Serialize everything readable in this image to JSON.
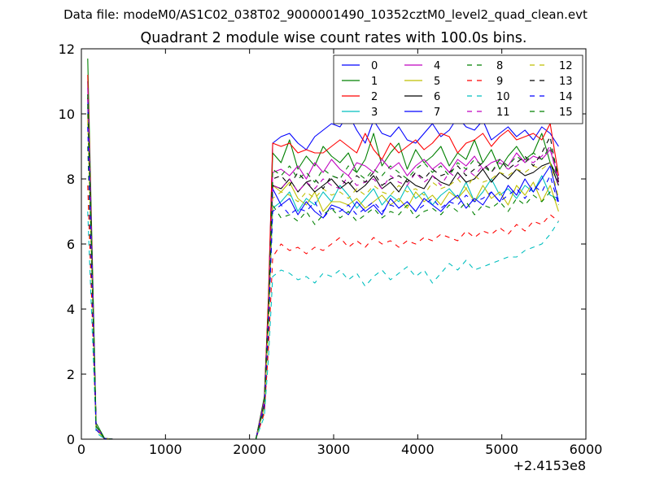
{
  "suptitle": "Data file: modeM0/AS1C02_038T02_9000001490_10352cztM0_level2_quad_clean.evt",
  "chart_data": {
    "type": "line",
    "title": "Quadrant 2 module wise count rates with 100.0s bins.",
    "xlabel": "",
    "ylabel": "",
    "x_offset_label": "+2.4153e8",
    "xlim": [
      0,
      6000
    ],
    "ylim": [
      0,
      12
    ],
    "x_ticks": [
      0,
      1000,
      2000,
      3000,
      4000,
      5000,
      6000
    ],
    "y_ticks": [
      0,
      2,
      4,
      6,
      8,
      10,
      12
    ],
    "grid": false,
    "legend": {
      "placement": "top-right",
      "columns": 4
    },
    "x": [
      75,
      175,
      275,
      375,
      475,
      575,
      675,
      775,
      875,
      975,
      1075,
      1175,
      1275,
      1375,
      1475,
      1575,
      1675,
      1775,
      1875,
      1975,
      2075,
      2175,
      2225,
      2275,
      2375,
      2475,
      2575,
      2675,
      2775,
      2875,
      2975,
      3075,
      3175,
      3275,
      3375,
      3475,
      3575,
      3675,
      3775,
      3875,
      3975,
      4075,
      4175,
      4275,
      4375,
      4475,
      4575,
      4675,
      4775,
      4875,
      4975,
      5075,
      5175,
      5275,
      5375,
      5475,
      5575,
      5675
    ],
    "series": [
      {
        "name": "0",
        "color": "#0000ff",
        "dash": "solid",
        "plateau": 9.4,
        "start": 11.0,
        "values": [
          11.0,
          0.4,
          0.02,
          0,
          0,
          0,
          0,
          0,
          0,
          0,
          0,
          0,
          0,
          0,
          0,
          0,
          0,
          0,
          0,
          0,
          0.0,
          1.2,
          4.2,
          9.1,
          9.3,
          9.4,
          9.1,
          8.9,
          9.3,
          9.5,
          9.7,
          9.6,
          10.0,
          9.5,
          9.1,
          9.8,
          9.4,
          9.3,
          9.6,
          9.2,
          9.1,
          9.4,
          9.7,
          9.3,
          9.5,
          9.9,
          9.6,
          9.5,
          9.8,
          9.2,
          9.4,
          9.6,
          9.3,
          9.5,
          9.2,
          9.6,
          9.4,
          9.0
        ]
      },
      {
        "name": "1",
        "color": "#008000",
        "dash": "solid",
        "plateau": 8.6,
        "start": 11.7,
        "values": [
          11.7,
          0.5,
          0.03,
          0,
          0,
          0,
          0,
          0,
          0,
          0,
          0,
          0,
          0,
          0,
          0,
          0,
          0,
          0,
          0,
          0,
          0.0,
          1.3,
          4.3,
          8.8,
          8.5,
          9.2,
          8.3,
          8.7,
          8.4,
          9.0,
          8.7,
          8.5,
          8.8,
          8.2,
          8.6,
          9.4,
          8.4,
          8.8,
          9.1,
          8.3,
          8.9,
          8.5,
          8.7,
          9.0,
          8.4,
          8.8,
          8.6,
          9.2,
          8.5,
          8.9,
          8.3,
          8.7,
          9.0,
          8.6,
          8.8,
          9.4,
          8.5,
          8.0
        ]
      },
      {
        "name": "2",
        "color": "#ff0000",
        "dash": "solid",
        "plateau": 9.0,
        "start": 11.2,
        "values": [
          11.2,
          0.4,
          0.02,
          0,
          0,
          0,
          0,
          0,
          0,
          0,
          0,
          0,
          0,
          0,
          0,
          0,
          0,
          0,
          0,
          0,
          0.0,
          1.2,
          4.4,
          9.1,
          9.0,
          9.1,
          8.8,
          8.9,
          8.8,
          8.8,
          9.0,
          9.2,
          9.0,
          8.8,
          9.4,
          8.9,
          8.6,
          9.1,
          8.8,
          9.0,
          9.2,
          8.9,
          9.1,
          9.4,
          9.3,
          8.8,
          9.1,
          9.2,
          9.4,
          9.0,
          9.3,
          9.5,
          9.2,
          9.3,
          9.4,
          9.2,
          9.7,
          8.1
        ]
      },
      {
        "name": "3",
        "color": "#00bfbf",
        "dash": "solid",
        "plateau": 7.4,
        "start": 10.2,
        "values": [
          10.2,
          0.3,
          0.02,
          0,
          0,
          0,
          0,
          0,
          0,
          0,
          0,
          0,
          0,
          0,
          0,
          0,
          0,
          0,
          0,
          0,
          0.0,
          1.0,
          3.6,
          7.1,
          7.3,
          7.6,
          7.0,
          7.4,
          7.2,
          7.6,
          7.3,
          7.8,
          7.5,
          7.1,
          7.4,
          7.7,
          7.2,
          7.5,
          7.3,
          7.8,
          7.4,
          7.6,
          7.2,
          7.5,
          7.7,
          7.4,
          7.9,
          7.3,
          7.6,
          8.0,
          7.5,
          7.7,
          7.4,
          7.8,
          7.6,
          8.1,
          7.5,
          7.4
        ]
      },
      {
        "name": "4",
        "color": "#bf00bf",
        "dash": "solid",
        "plateau": 8.4,
        "start": 10.8,
        "values": [
          10.8,
          0.4,
          0.02,
          0,
          0,
          0,
          0,
          0,
          0,
          0,
          0,
          0,
          0,
          0,
          0,
          0,
          0,
          0,
          0,
          0,
          0.0,
          1.2,
          4.0,
          8.2,
          8.3,
          8.1,
          8.4,
          8.0,
          8.5,
          8.2,
          8.6,
          8.3,
          8.1,
          8.5,
          8.4,
          8.2,
          8.6,
          8.3,
          8.5,
          8.1,
          8.4,
          8.6,
          8.3,
          8.5,
          8.2,
          8.6,
          8.4,
          8.7,
          8.3,
          8.5,
          8.6,
          8.4,
          8.8,
          8.5,
          8.7,
          8.6,
          8.9,
          8.0
        ]
      },
      {
        "name": "5",
        "color": "#bfbf00",
        "dash": "solid",
        "plateau": 7.4,
        "start": 10.0,
        "values": [
          10.0,
          0.3,
          0.02,
          0,
          0,
          0,
          0,
          0,
          0,
          0,
          0,
          0,
          0,
          0,
          0,
          0,
          0,
          0,
          0,
          0,
          0.0,
          1.0,
          3.5,
          7.8,
          7.6,
          7.9,
          7.4,
          7.2,
          7.6,
          7.0,
          7.3,
          7.3,
          7.2,
          7.4,
          7.1,
          7.3,
          7.5,
          7.2,
          7.4,
          7.1,
          7.6,
          7.3,
          7.5,
          7.2,
          7.6,
          7.4,
          7.7,
          7.3,
          7.8,
          7.4,
          7.6,
          7.2,
          7.8,
          7.5,
          7.9,
          7.3,
          7.8,
          7.0
        ]
      },
      {
        "name": "6",
        "color": "#000000",
        "dash": "solid",
        "plateau": 7.8,
        "start": 10.5,
        "values": [
          10.5,
          0.4,
          0.02,
          0,
          0,
          0,
          0,
          0,
          0,
          0,
          0,
          0,
          0,
          0,
          0,
          0,
          0,
          0,
          0,
          0,
          0.0,
          1.1,
          3.9,
          7.8,
          7.7,
          8.0,
          7.6,
          7.9,
          7.6,
          7.8,
          8.0,
          7.7,
          7.9,
          7.6,
          7.8,
          8.1,
          7.7,
          7.9,
          7.6,
          8.0,
          7.8,
          7.7,
          8.1,
          7.9,
          7.8,
          8.2,
          7.9,
          8.0,
          8.3,
          7.9,
          8.2,
          8.0,
          8.3,
          8.1,
          8.2,
          8.4,
          8.5,
          7.8
        ]
      },
      {
        "name": "7",
        "color": "#0000ff",
        "dash": "solid",
        "plateau": 7.2,
        "start": 10.6,
        "values": [
          10.6,
          0.4,
          0.02,
          0,
          0,
          0,
          0,
          0,
          0,
          0,
          0,
          0,
          0,
          0,
          0,
          0,
          0,
          0,
          0,
          0,
          0.0,
          1.1,
          3.8,
          7.7,
          7.2,
          7.4,
          6.9,
          7.3,
          7.0,
          6.8,
          7.2,
          7.1,
          6.9,
          7.3,
          7.0,
          7.2,
          6.9,
          7.4,
          7.1,
          7.3,
          7.0,
          7.4,
          7.2,
          7.0,
          7.3,
          7.5,
          7.1,
          7.4,
          7.2,
          7.6,
          7.3,
          7.8,
          7.5,
          8.0,
          7.6,
          8.0,
          8.4,
          7.3
        ]
      },
      {
        "name": "8",
        "color": "#008000",
        "dash": "dashed",
        "plateau": 6.9,
        "start": 9.0,
        "values": [
          9.0,
          0.3,
          0.02,
          0,
          0,
          0,
          0,
          0,
          0,
          0,
          0,
          0,
          0,
          0,
          0,
          0,
          0,
          0,
          0,
          0,
          0.0,
          0.9,
          3.3,
          7.2,
          6.8,
          6.9,
          6.7,
          7.0,
          6.6,
          6.9,
          7.1,
          6.8,
          7.0,
          6.7,
          6.9,
          7.1,
          6.8,
          7.0,
          6.9,
          7.2,
          6.8,
          7.0,
          7.1,
          6.9,
          7.2,
          7.0,
          7.3,
          6.9,
          7.2,
          7.1,
          7.3,
          7.0,
          7.4,
          7.2,
          7.5,
          7.3,
          7.6,
          7.2
        ]
      },
      {
        "name": "9",
        "color": "#ff0000",
        "dash": "dashed",
        "plateau": 6.0,
        "start": 7.8,
        "values": [
          7.8,
          0.3,
          0.01,
          0,
          0,
          0,
          0,
          0,
          0,
          0,
          0,
          0,
          0,
          0,
          0,
          0,
          0,
          0,
          0,
          0,
          0.0,
          0.8,
          2.8,
          5.6,
          6.0,
          5.8,
          5.9,
          5.7,
          5.9,
          5.8,
          6.0,
          6.2,
          5.9,
          6.1,
          5.9,
          6.2,
          6.0,
          6.1,
          5.9,
          6.1,
          6.0,
          6.2,
          6.1,
          6.3,
          6.2,
          6.1,
          6.4,
          6.2,
          6.4,
          6.3,
          6.5,
          6.3,
          6.6,
          6.4,
          6.7,
          6.6,
          6.9,
          6.7
        ]
      },
      {
        "name": "10",
        "color": "#00bfbf",
        "dash": "dashed",
        "plateau": 5.1,
        "start": 7.0,
        "values": [
          7.0,
          0.2,
          0.01,
          0,
          0,
          0,
          0,
          0,
          0,
          0,
          0,
          0,
          0,
          0,
          0,
          0,
          0,
          0,
          0,
          0,
          0.0,
          0.7,
          2.5,
          5.0,
          5.2,
          5.1,
          4.9,
          5.0,
          4.8,
          5.1,
          5.0,
          5.2,
          4.9,
          5.1,
          4.7,
          5.0,
          5.2,
          4.9,
          5.1,
          5.3,
          5.0,
          5.2,
          4.8,
          5.1,
          5.4,
          5.2,
          5.5,
          5.2,
          5.3,
          5.4,
          5.5,
          5.6,
          5.6,
          5.8,
          5.9,
          6.0,
          6.3,
          6.7
        ]
      },
      {
        "name": "11",
        "color": "#bf00bf",
        "dash": "dashed",
        "plateau": 7.9,
        "start": 10.5,
        "values": [
          10.5,
          0.4,
          0.02,
          0,
          0,
          0,
          0,
          0,
          0,
          0,
          0,
          0,
          0,
          0,
          0,
          0,
          0,
          0,
          0,
          0,
          0.0,
          1.1,
          3.9,
          7.8,
          7.7,
          8.0,
          7.6,
          7.9,
          7.7,
          8.0,
          7.8,
          7.7,
          8.1,
          7.8,
          7.9,
          8.0,
          7.7,
          8.1,
          7.9,
          7.8,
          8.2,
          7.9,
          8.1,
          7.8,
          8.2,
          8.0,
          8.3,
          8.1,
          8.4,
          8.2,
          8.5,
          8.3,
          8.4,
          8.6,
          8.5,
          8.7,
          9.0,
          7.8
        ]
      },
      {
        "name": "12",
        "color": "#bfbf00",
        "dash": "dashed",
        "plateau": 7.6,
        "start": 9.8,
        "values": [
          9.8,
          0.3,
          0.02,
          0,
          0,
          0,
          0,
          0,
          0,
          0,
          0,
          0,
          0,
          0,
          0,
          0,
          0,
          0,
          0,
          0,
          0.0,
          1.0,
          3.6,
          7.4,
          7.6,
          7.5,
          7.3,
          7.6,
          7.4,
          7.7,
          7.5,
          7.6,
          7.4,
          7.7,
          7.5,
          7.8,
          7.6,
          7.5,
          7.8,
          7.6,
          7.7,
          7.5,
          7.9,
          7.7,
          7.8,
          8.0,
          7.7,
          8.1,
          7.9,
          8.0,
          8.2,
          8.1,
          8.3,
          8.2,
          8.4,
          8.3,
          8.5,
          7.4
        ]
      },
      {
        "name": "13",
        "color": "#000000",
        "dash": "dashed",
        "plateau": 8.0,
        "start": 10.3,
        "values": [
          10.3,
          0.4,
          0.02,
          0,
          0,
          0,
          0,
          0,
          0,
          0,
          0,
          0,
          0,
          0,
          0,
          0,
          0,
          0,
          0,
          0,
          0.0,
          1.1,
          3.9,
          8.0,
          8.1,
          7.8,
          8.2,
          7.9,
          8.0,
          7.7,
          8.1,
          8.0,
          7.8,
          8.1,
          7.9,
          8.2,
          7.8,
          8.0,
          8.1,
          7.9,
          8.2,
          8.0,
          8.3,
          8.1,
          8.2,
          8.4,
          8.1,
          8.3,
          8.5,
          8.2,
          8.6,
          8.3,
          8.5,
          8.7,
          8.4,
          8.8,
          9.3,
          7.9
        ]
      },
      {
        "name": "14",
        "color": "#0000ff",
        "dash": "dashed",
        "plateau": 7.2,
        "start": 9.6,
        "values": [
          9.6,
          0.3,
          0.02,
          0,
          0,
          0,
          0,
          0,
          0,
          0,
          0,
          0,
          0,
          0,
          0,
          0,
          0,
          0,
          0,
          0,
          0.0,
          1.0,
          3.5,
          7.0,
          7.2,
          6.9,
          7.1,
          7.0,
          7.3,
          6.8,
          7.1,
          7.0,
          7.2,
          6.9,
          7.1,
          7.3,
          7.0,
          7.2,
          7.1,
          7.3,
          7.0,
          7.2,
          7.4,
          7.1,
          7.3,
          7.2,
          7.5,
          7.3,
          7.4,
          7.6,
          7.3,
          7.5,
          7.7,
          7.4,
          7.8,
          7.6,
          8.1,
          7.2
        ]
      },
      {
        "name": "15",
        "color": "#008000",
        "dash": "dashed",
        "plateau": 8.2,
        "start": 10.6,
        "values": [
          10.6,
          0.4,
          0.02,
          0,
          0,
          0,
          0,
          0,
          0,
          0,
          0,
          0,
          0,
          0,
          0,
          0,
          0,
          0,
          0,
          0,
          0.0,
          1.1,
          4.0,
          8.3,
          8.1,
          8.4,
          8.0,
          8.2,
          7.9,
          8.3,
          8.1,
          8.0,
          8.4,
          8.2,
          8.0,
          8.3,
          8.1,
          8.4,
          8.2,
          8.0,
          8.3,
          8.5,
          8.2,
          8.4,
          8.1,
          8.5,
          8.3,
          8.6,
          8.4,
          8.2,
          8.6,
          8.4,
          8.7,
          8.5,
          8.8,
          8.6,
          9.0,
          8.1
        ]
      }
    ]
  }
}
